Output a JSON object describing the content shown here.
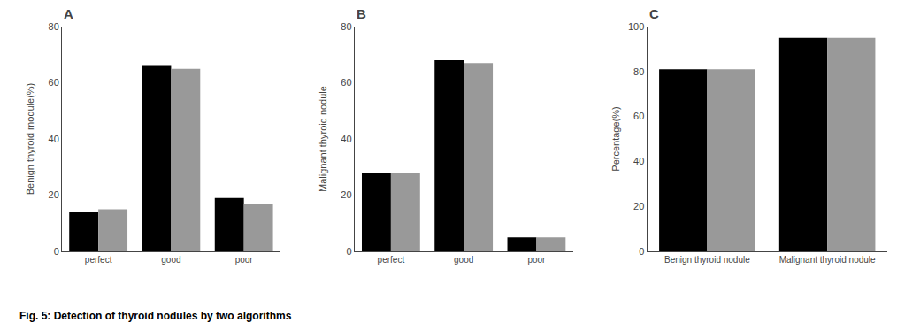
{
  "chart_data": [
    {
      "type": "bar",
      "title": "A",
      "categories": [
        "perfect",
        "good",
        "poor"
      ],
      "series": [
        {
          "color": "#000000",
          "values": [
            14,
            66,
            19
          ]
        },
        {
          "color": "#999999",
          "values": [
            15,
            65,
            17
          ]
        }
      ],
      "ylabel": "Benign thyroid module(%)",
      "ylim": [
        0,
        80
      ],
      "yticks": [
        0,
        20,
        40,
        60,
        80
      ],
      "grid": false,
      "annotations": [
        "Fig. 5: Detection of thyroid nodules by two algorithms"
      ]
    },
    {
      "type": "bar",
      "title": "B",
      "categories": [
        "perfect",
        "good",
        "poor"
      ],
      "series": [
        {
          "color": "#000000",
          "values": [
            28,
            68,
            5
          ]
        },
        {
          "color": "#999999",
          "values": [
            28,
            67,
            5
          ]
        }
      ],
      "ylabel": "Malignant thyroid nodule",
      "ylim": [
        0,
        80
      ],
      "yticks": [
        0,
        20,
        40,
        60,
        80
      ],
      "grid": false
    },
    {
      "type": "bar",
      "title": "C",
      "categories": [
        "Benign thyroid nodule",
        "Malignant thyroid nodule"
      ],
      "series": [
        {
          "color": "#000000",
          "values": [
            81,
            95
          ]
        },
        {
          "color": "#999999",
          "values": [
            81,
            95
          ]
        }
      ],
      "ylabel": "Percentage(%)",
      "ylim": [
        0,
        100
      ],
      "yticks": [
        0,
        20,
        40,
        60,
        80,
        100
      ],
      "grid": false
    }
  ]
}
